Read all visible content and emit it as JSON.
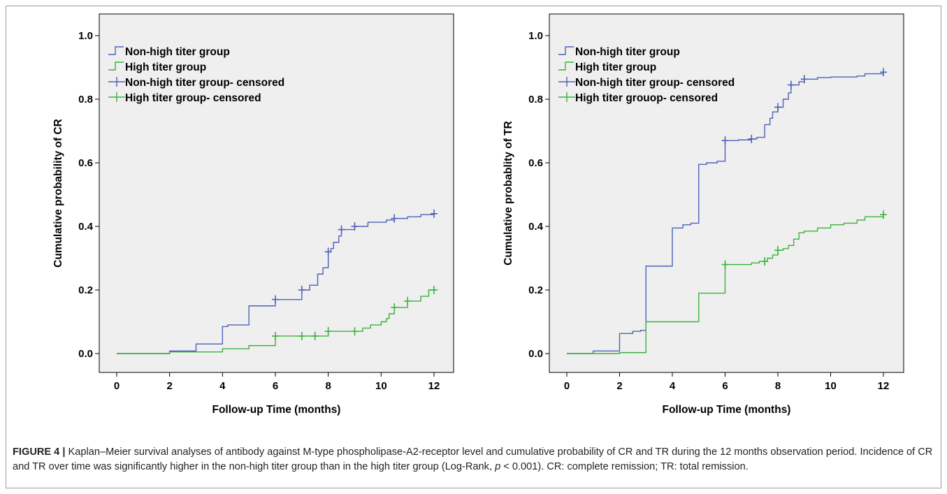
{
  "colors": {
    "plot_bg": "#efefef",
    "non_high": "#4e62b8",
    "high": "#3cb23c",
    "axis": "#000000",
    "frame": "#000000"
  },
  "caption": {
    "label": "FIGURE 4 |",
    "text_1": " Kaplan–Meier survival analyses of antibody against M-type phospholipase-A2-receptor level and cumulative probability of CR and TR during the 12 months observation period. Incidence of CR and TR over time was significantly higher in the non-high titer group than in the high titer group (Log-Rank, ",
    "p_symbol": "p",
    "text_2": " < 0.001). CR: complete remission; TR: total remission."
  },
  "chart_data": [
    {
      "type": "line",
      "step": true,
      "ylabel": "Cumulative probability of CR",
      "xlabel": "Follow-up Time (months)",
      "xlim": [
        0,
        12
      ],
      "ylim": [
        0,
        1.0
      ],
      "xticks": [
        "0",
        "2",
        "4",
        "6",
        "8",
        "10",
        "12"
      ],
      "yticks": [
        "0.0",
        "0.2",
        "0.4",
        "0.6",
        "0.8",
        "1.0"
      ],
      "legend_position": "top-left",
      "legend": [
        {
          "label": "Non-high titer group",
          "series": "non_high",
          "kind": "step"
        },
        {
          "label": "High titer group",
          "series": "high",
          "kind": "step"
        },
        {
          "label": "Non-high titer group- censored",
          "series": "non_high",
          "kind": "censor"
        },
        {
          "label": "High titer group- censored",
          "series": "high",
          "kind": "censor"
        }
      ],
      "series": [
        {
          "name": "Non-high titer group",
          "color_key": "non_high",
          "points": [
            [
              0,
              0
            ],
            [
              2,
              0.008
            ],
            [
              3,
              0.03
            ],
            [
              4,
              0.085
            ],
            [
              4.2,
              0.09
            ],
            [
              5,
              0.15
            ],
            [
              6,
              0.17
            ],
            [
              7,
              0.2
            ],
            [
              7.3,
              0.215
            ],
            [
              7.6,
              0.25
            ],
            [
              7.8,
              0.27
            ],
            [
              8,
              0.32
            ],
            [
              8.1,
              0.33
            ],
            [
              8.2,
              0.35
            ],
            [
              8.4,
              0.37
            ],
            [
              8.5,
              0.39
            ],
            [
              9,
              0.4
            ],
            [
              9.5,
              0.413
            ],
            [
              10.2,
              0.42
            ],
            [
              10.5,
              0.425
            ],
            [
              11,
              0.43
            ],
            [
              11.5,
              0.437
            ],
            [
              12,
              0.44
            ]
          ],
          "censored_x": [
            6,
            7,
            8,
            8.5,
            9,
            10.5,
            12
          ]
        },
        {
          "name": "High titer group",
          "color_key": "high",
          "points": [
            [
              0,
              0
            ],
            [
              2,
              0.005
            ],
            [
              4,
              0.015
            ],
            [
              5,
              0.025
            ],
            [
              6,
              0.055
            ],
            [
              8,
              0.07
            ],
            [
              9,
              0.07
            ],
            [
              9.3,
              0.08
            ],
            [
              9.6,
              0.09
            ],
            [
              10,
              0.1
            ],
            [
              10.2,
              0.11
            ],
            [
              10.3,
              0.125
            ],
            [
              10.5,
              0.145
            ],
            [
              11,
              0.165
            ],
            [
              11.5,
              0.18
            ],
            [
              11.8,
              0.2
            ],
            [
              12,
              0.2
            ]
          ],
          "censored_x": [
            6,
            7,
            7.5,
            8,
            9,
            10.5,
            11,
            12
          ]
        }
      ]
    },
    {
      "type": "line",
      "step": true,
      "ylabel": "Cumulative probablity of TR",
      "xlabel": "Follow-up Time (months)",
      "xlim": [
        0,
        12
      ],
      "ylim": [
        0,
        1.0
      ],
      "xticks": [
        "0",
        "2",
        "4",
        "6",
        "8",
        "10",
        "12"
      ],
      "yticks": [
        "0.0",
        "0.2",
        "0.4",
        "0.6",
        "0.8",
        "1.0"
      ],
      "legend_position": "top-left",
      "legend": [
        {
          "label": "Non-high titer group",
          "series": "non_high",
          "kind": "step"
        },
        {
          "label": "High titer group",
          "series": "high",
          "kind": "step"
        },
        {
          "label": "Non-high titer group- censored",
          "series": "non_high",
          "kind": "censor"
        },
        {
          "label": "High titer grouop- censored",
          "series": "high",
          "kind": "censor"
        }
      ],
      "series": [
        {
          "name": "Non-high titer group",
          "color_key": "non_high",
          "points": [
            [
              0,
              0
            ],
            [
              1,
              0.008
            ],
            [
              2,
              0.063
            ],
            [
              2.5,
              0.07
            ],
            [
              2.8,
              0.073
            ],
            [
              3,
              0.275
            ],
            [
              4,
              0.395
            ],
            [
              4.4,
              0.405
            ],
            [
              4.7,
              0.41
            ],
            [
              5,
              0.595
            ],
            [
              5.3,
              0.6
            ],
            [
              5.7,
              0.605
            ],
            [
              6,
              0.67
            ],
            [
              6.5,
              0.672
            ],
            [
              7,
              0.675
            ],
            [
              7.2,
              0.68
            ],
            [
              7.5,
              0.72
            ],
            [
              7.7,
              0.74
            ],
            [
              7.8,
              0.76
            ],
            [
              8,
              0.775
            ],
            [
              8.2,
              0.8
            ],
            [
              8.4,
              0.82
            ],
            [
              8.5,
              0.845
            ],
            [
              8.8,
              0.855
            ],
            [
              9,
              0.863
            ],
            [
              9.5,
              0.868
            ],
            [
              10,
              0.87
            ],
            [
              11,
              0.873
            ],
            [
              11.3,
              0.88
            ],
            [
              12,
              0.885
            ]
          ],
          "censored_x": [
            6,
            7,
            8,
            8.5,
            9,
            12
          ]
        },
        {
          "name": "High titer group",
          "color_key": "high",
          "points": [
            [
              0,
              0
            ],
            [
              2,
              0.003
            ],
            [
              3,
              0.1
            ],
            [
              5,
              0.19
            ],
            [
              6,
              0.28
            ],
            [
              7,
              0.285
            ],
            [
              7.3,
              0.29
            ],
            [
              7.6,
              0.3
            ],
            [
              7.8,
              0.31
            ],
            [
              8,
              0.325
            ],
            [
              8.2,
              0.33
            ],
            [
              8.4,
              0.34
            ],
            [
              8.6,
              0.36
            ],
            [
              8.8,
              0.38
            ],
            [
              9,
              0.385
            ],
            [
              9.5,
              0.395
            ],
            [
              10,
              0.405
            ],
            [
              10.5,
              0.41
            ],
            [
              11,
              0.42
            ],
            [
              11.3,
              0.43
            ],
            [
              12,
              0.437
            ]
          ],
          "censored_x": [
            6,
            7.5,
            8,
            12
          ]
        }
      ]
    }
  ]
}
